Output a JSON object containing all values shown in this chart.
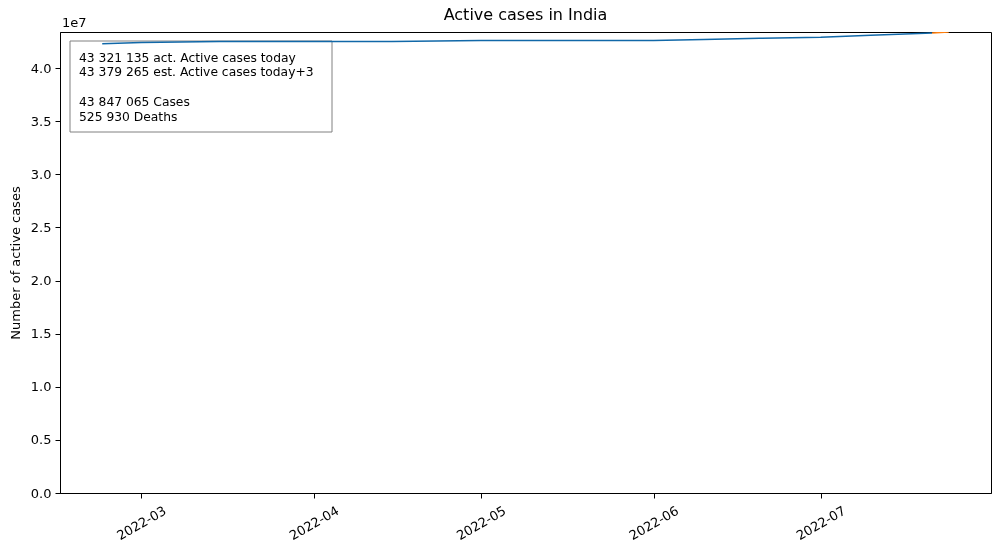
{
  "chart_data": {
    "type": "line",
    "title": "Active cases in India",
    "ylabel": "Number of active cases",
    "annotations": [
      "1e7",
      "43 321 135 act. Active cases today",
      "43 379 265 est. Active cases today+3",
      "43 847 065 Cases",
      "525 930 Deaths"
    ],
    "series": [
      {
        "color": "#1168a8",
        "x": [
          "2022-02-22",
          "2022-03-01",
          "2022-03-15",
          "2022-04-01",
          "2022-04-15",
          "2022-05-01",
          "2022-05-15",
          "2022-06-01",
          "2022-06-10",
          "2022-06-20",
          "2022-07-01",
          "2022-07-10",
          "2022-07-21"
        ],
        "values": [
          4.23,
          4.24,
          4.25,
          4.25,
          4.25,
          4.26,
          4.26,
          4.26,
          4.27,
          4.28,
          4.29,
          4.31,
          4.33
        ]
      },
      {
        "color": "#ff7f0e",
        "x": [
          "2022-07-21",
          "2022-07-24"
        ],
        "values": [
          4.33,
          4.34
        ]
      }
    ],
    "xlim": [
      "2022-02-14T10:00",
      "2022-07-31T14:00"
    ],
    "xticks": [
      "2022-03",
      "2022-04",
      "2022-05",
      "2022-06",
      "2022-07"
    ],
    "ylim": [
      0,
      4.34
    ],
    "yticks": [
      {
        "value": 0,
        "label": "0.0"
      },
      0.5,
      {
        "value": 1,
        "label": "1.0"
      },
      1.5,
      {
        "value": 2,
        "label": "2.0"
      },
      2.5,
      {
        "value": 3,
        "label": "3.0"
      },
      3.5,
      {
        "value": 4,
        "label": "4.0"
      }
    ]
  }
}
